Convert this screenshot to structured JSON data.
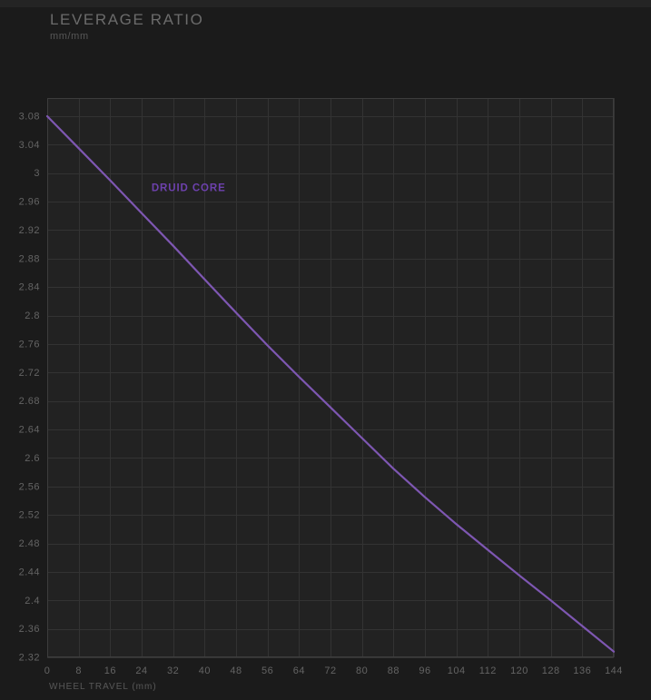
{
  "header": {
    "title": "LEVERAGE RATIO",
    "subtitle": "mm/mm"
  },
  "colors": {
    "page_background": "#1b1b1b",
    "top_strip": "#242424",
    "plot_background": "#222222",
    "grid": "#333333",
    "plot_border": "#3d3d3d",
    "tick_label": "#646464",
    "title": "#6b6b6b",
    "subtitle": "#575757",
    "axis_title": "#585858",
    "series_line": "#7e57b2",
    "series_label": "#6d41ad"
  },
  "chart_data": {
    "type": "line",
    "title": "LEVERAGE RATIO",
    "subtitle": "mm/mm",
    "xlabel": "WHEEL TRAVEL (mm)",
    "ylabel": "",
    "grid": true,
    "legend_position": "inline-annotation",
    "xlim": [
      0,
      144
    ],
    "ylim": [
      2.32,
      3.1055
    ],
    "x_ticks": [
      "0",
      "8",
      "16",
      "24",
      "32",
      "40",
      "48",
      "56",
      "64",
      "72",
      "80",
      "88",
      "96",
      "104",
      "112",
      "120",
      "128",
      "136",
      "144"
    ],
    "y_ticks": [
      "3.08",
      "3.04",
      "3",
      "2.96",
      "2.92",
      "2.88",
      "2.84",
      "2.8",
      "2.76",
      "2.72",
      "2.68",
      "2.64",
      "2.6",
      "2.56",
      "2.52",
      "2.48",
      "2.44",
      "2.4",
      "2.36",
      "2.32"
    ],
    "x": [
      0,
      8,
      16,
      24,
      32,
      40,
      48,
      56,
      64,
      72,
      80,
      88,
      96,
      104,
      112,
      120,
      128,
      136,
      144
    ],
    "series": [
      {
        "name": "DRUID CORE",
        "color": "#7e57b2",
        "values": [
          3.08,
          3.035,
          2.99,
          2.944,
          2.898,
          2.851,
          2.804,
          2.758,
          2.714,
          2.671,
          2.628,
          2.585,
          2.545,
          2.507,
          2.471,
          2.435,
          2.4,
          2.364,
          2.328
        ]
      }
    ],
    "series_label": {
      "text": "DRUID CORE",
      "x": 26.5,
      "y": 2.975
    }
  }
}
